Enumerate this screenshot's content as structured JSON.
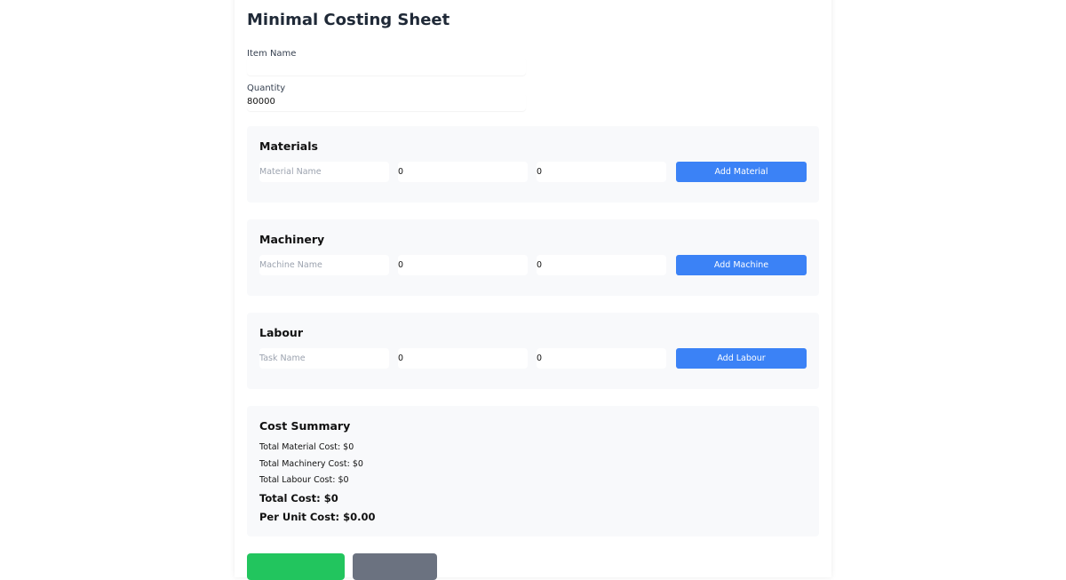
{
  "title": "Minimal Costing Sheet",
  "item_name": {
    "label": "Item Name",
    "value": ""
  },
  "quantity": {
    "label": "Quantity",
    "value": "80000"
  },
  "sections": [
    {
      "title": "Materials",
      "name_placeholder": "Material Name",
      "value1": "0",
      "value2": "0",
      "button": "Add Material"
    },
    {
      "title": "Machinery",
      "name_placeholder": "Machine Name",
      "value1": "0",
      "value2": "0",
      "button": "Add Machine"
    },
    {
      "title": "Labour",
      "name_placeholder": "Task Name",
      "value1": "0",
      "value2": "0",
      "button": "Add Labour"
    }
  ],
  "summary": {
    "title": "Cost Summary",
    "material": "Total Material Cost: $0",
    "machinery": "Total Machinery Cost: $0",
    "labour": "Total Labour Cost: $0",
    "total": "Total Cost: $0",
    "per_unit": "Per Unit Cost: $0.00"
  },
  "colors": {
    "primary": "#3b82f6",
    "success": "#22c55e",
    "secondary": "#6b7280"
  }
}
